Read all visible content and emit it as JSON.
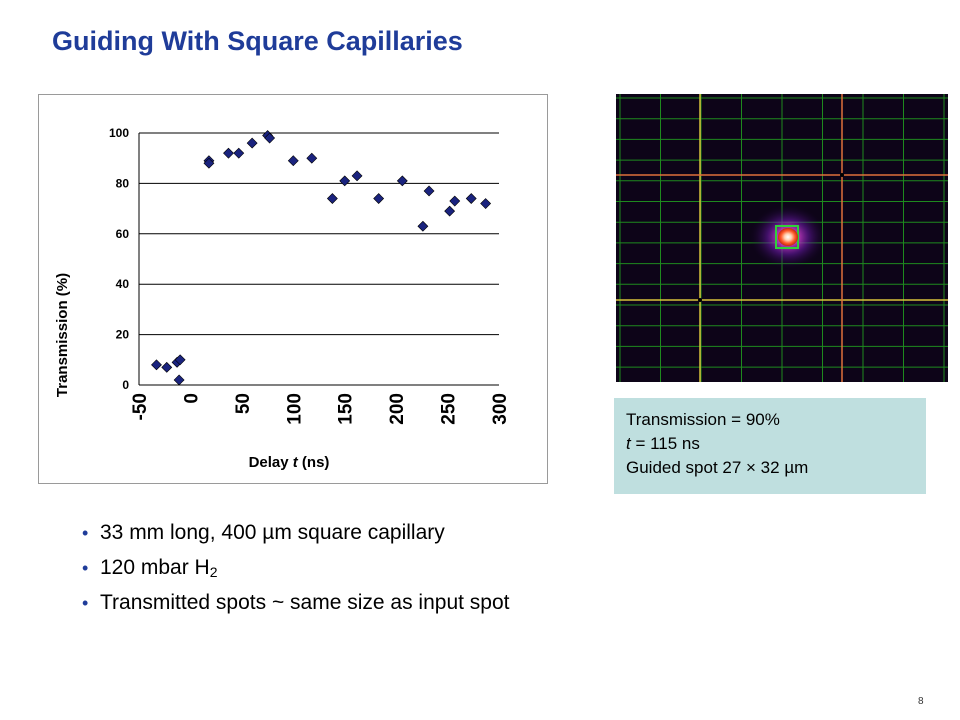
{
  "slide": {
    "title": "Guiding With Square Capillaries",
    "page_number": "8"
  },
  "info_box": {
    "line1": "Transmission = 90%",
    "line2_var": "t",
    "line2_rest": " = 115 ns",
    "line3": "Guided spot 27 × 32 µm"
  },
  "bullets": [
    {
      "text": "33 mm long, 400 µm square capillary"
    },
    {
      "text": "120 mbar H",
      "sub": "2"
    },
    {
      "text": "Transmitted spots ~ same size as input spot"
    }
  ],
  "beam_image": {
    "background": "#0d0418",
    "grid_color": "#1e8a1e",
    "crosshair_yellow": "#d8c23a",
    "crosshair_orange": "#e0703a",
    "spot_color": "#ff5a2a"
  },
  "chart_data": {
    "type": "scatter",
    "xlabel_prefix": "Delay ",
    "xlabel_var": "t",
    "xlabel_suffix": " (ns)",
    "ylabel": "Transmission (%)",
    "xlim": [
      -50,
      300
    ],
    "ylim": [
      0,
      100
    ],
    "x_ticks": [
      "-50",
      "0",
      "50",
      "100",
      "150",
      "200",
      "250",
      "300"
    ],
    "y_ticks": [
      "0",
      "20",
      "40",
      "60",
      "80",
      "100"
    ],
    "grid": "horizontal",
    "marker_color": "#1a237e",
    "points": [
      {
        "x": -33,
        "y": 8
      },
      {
        "x": -23,
        "y": 7
      },
      {
        "x": -13,
        "y": 9
      },
      {
        "x": -10,
        "y": 10
      },
      {
        "x": -11,
        "y": 2
      },
      {
        "x": 18,
        "y": 89
      },
      {
        "x": 18,
        "y": 88
      },
      {
        "x": 37,
        "y": 92
      },
      {
        "x": 47,
        "y": 92
      },
      {
        "x": 60,
        "y": 96
      },
      {
        "x": 75,
        "y": 99
      },
      {
        "x": 77,
        "y": 98
      },
      {
        "x": 100,
        "y": 89
      },
      {
        "x": 118,
        "y": 90
      },
      {
        "x": 138,
        "y": 74
      },
      {
        "x": 150,
        "y": 81
      },
      {
        "x": 162,
        "y": 83
      },
      {
        "x": 183,
        "y": 74
      },
      {
        "x": 206,
        "y": 81
      },
      {
        "x": 226,
        "y": 63
      },
      {
        "x": 232,
        "y": 77
      },
      {
        "x": 252,
        "y": 69
      },
      {
        "x": 257,
        "y": 73
      },
      {
        "x": 273,
        "y": 74
      },
      {
        "x": 287,
        "y": 72
      }
    ]
  }
}
